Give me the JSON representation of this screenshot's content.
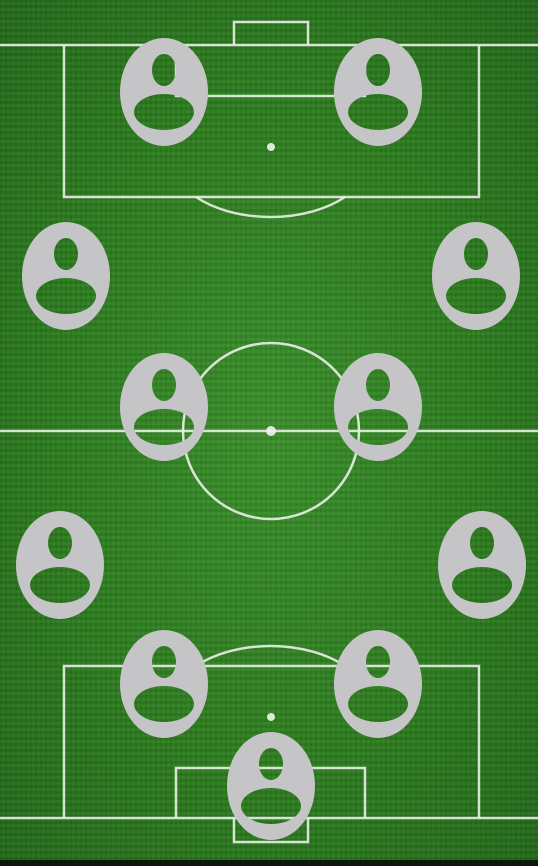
{
  "pitch": {
    "grass_color": "#2c7c1e",
    "line_color": "#e9efe5"
  },
  "player_slot": {
    "icon": "empty-player-avatar-icon",
    "fill_color": "#c5c4c7",
    "count": 11
  }
}
